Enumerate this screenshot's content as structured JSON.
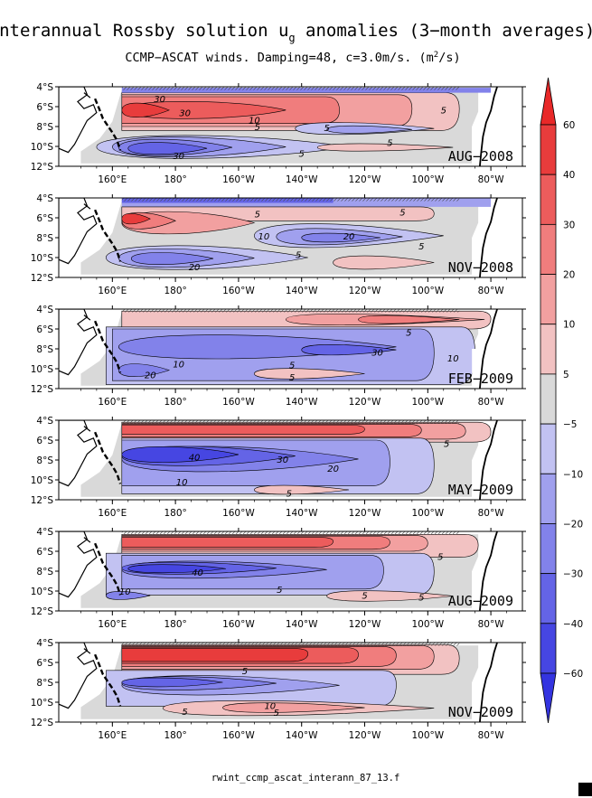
{
  "title": {
    "main": "Interannual Rossby solution u",
    "subscript": "g",
    "rest": " anomalies (3−month averages)"
  },
  "subtitle": "CCMP−ASCAT winds. Damping=48, c=3.0m/s. (m",
  "subtitle_sup": "2",
  "subtitle_end": "/s)",
  "footer": "rwint_ccmp_ascat_interann_87_13.f",
  "colors": {
    "land_fill": "#ffffff",
    "neutral": "#d9d9d9"
  },
  "chart_data": {
    "type": "heatmap",
    "xaxis": {
      "tick_labels": [
        "160°E",
        "180°",
        "160°W",
        "140°W",
        "120°W",
        "100°W",
        "80°W"
      ],
      "tick_lons": [
        160,
        180,
        200,
        220,
        240,
        260,
        280
      ],
      "range_lon": [
        143,
        290
      ]
    },
    "yaxis": {
      "tick_labels": [
        "4°S",
        "6°S",
        "8°S",
        "10°S",
        "12°S"
      ],
      "tick_lats": [
        -4,
        -6,
        -8,
        -10,
        -12
      ],
      "range_lat": [
        -12,
        -4
      ]
    },
    "colorbar": {
      "labels": [
        "60",
        "40",
        "30",
        "20",
        "10",
        "5",
        "−5",
        "−10",
        "−20",
        "−30",
        "−40",
        "−60"
      ],
      "bins": [
        "#e83c3c",
        "#ec5c5c",
        "#f07d7d",
        "#f2a0a0",
        "#f2c2c2",
        "#d9d9d9",
        "#c2c2f2",
        "#a0a0ee",
        "#8282ea",
        "#6464e6",
        "#4646e2"
      ],
      "top_color": "#e82828",
      "bottom_color": "#3434e0"
    },
    "panels": [
      {
        "label": "AUG−2008",
        "contour_labels": [
          {
            "text": "30",
            "lon": 175,
            "lat": -5.2
          },
          {
            "text": "30",
            "lon": 183,
            "lat": -6.6
          },
          {
            "text": "10",
            "lon": 205,
            "lat": -7.3
          },
          {
            "text": "5",
            "lon": 206,
            "lat": -8.0
          },
          {
            "text": "5",
            "lon": 228,
            "lat": -8.1
          },
          {
            "text": "5",
            "lon": 265,
            "lat": -6.3
          },
          {
            "text": "5",
            "lon": 248,
            "lat": -9.6
          },
          {
            "text": "5",
            "lon": 220,
            "lat": -10.7
          },
          {
            "text": "30",
            "lon": 181,
            "lat": -10.9
          }
        ]
      },
      {
        "label": "NOV−2008",
        "contour_labels": [
          {
            "text": "5",
            "lon": 206,
            "lat": -5.6
          },
          {
            "text": "5",
            "lon": 252,
            "lat": -5.4
          },
          {
            "text": "10",
            "lon": 208,
            "lat": -7.8
          },
          {
            "text": "20",
            "lon": 235,
            "lat": -7.8
          },
          {
            "text": "5",
            "lon": 258,
            "lat": -8.8
          },
          {
            "text": "5",
            "lon": 219,
            "lat": -9.7
          },
          {
            "text": "20",
            "lon": 186,
            "lat": -10.9
          }
        ]
      },
      {
        "label": "FEB−2009",
        "contour_labels": [
          {
            "text": "5",
            "lon": 254,
            "lat": -6.3
          },
          {
            "text": "30",
            "lon": 244,
            "lat": -8.3
          },
          {
            "text": "10",
            "lon": 268,
            "lat": -8.9
          },
          {
            "text": "10",
            "lon": 181,
            "lat": -9.5
          },
          {
            "text": "5",
            "lon": 217,
            "lat": -9.6
          },
          {
            "text": "5",
            "lon": 217,
            "lat": -10.8
          },
          {
            "text": "20",
            "lon": 172,
            "lat": -10.6
          }
        ]
      },
      {
        "label": "MAY−2009",
        "contour_labels": [
          {
            "text": "40",
            "lon": 186,
            "lat": -7.7
          },
          {
            "text": "30",
            "lon": 214,
            "lat": -7.9
          },
          {
            "text": "20",
            "lon": 230,
            "lat": -8.8
          },
          {
            "text": "5",
            "lon": 266,
            "lat": -6.3
          },
          {
            "text": "10",
            "lon": 182,
            "lat": -10.2
          },
          {
            "text": "5",
            "lon": 216,
            "lat": -11.3
          }
        ]
      },
      {
        "label": "AUG−2009",
        "contour_labels": [
          {
            "text": "5",
            "lon": 264,
            "lat": -6.5
          },
          {
            "text": "40",
            "lon": 187,
            "lat": -8.1
          },
          {
            "text": "5",
            "lon": 213,
            "lat": -9.8
          },
          {
            "text": "5",
            "lon": 240,
            "lat": -10.4
          },
          {
            "text": "5",
            "lon": 258,
            "lat": -10.6
          },
          {
            "text": "10",
            "lon": 164,
            "lat": -10.0
          }
        ]
      },
      {
        "label": "NOV−2009",
        "contour_labels": [
          {
            "text": "5",
            "lon": 202,
            "lat": -6.8
          },
          {
            "text": "10",
            "lon": 210,
            "lat": -10.3
          },
          {
            "text": "5",
            "lon": 212,
            "lat": -11.0
          },
          {
            "text": "5",
            "lon": 183,
            "lat": -10.9
          }
        ]
      }
    ]
  }
}
